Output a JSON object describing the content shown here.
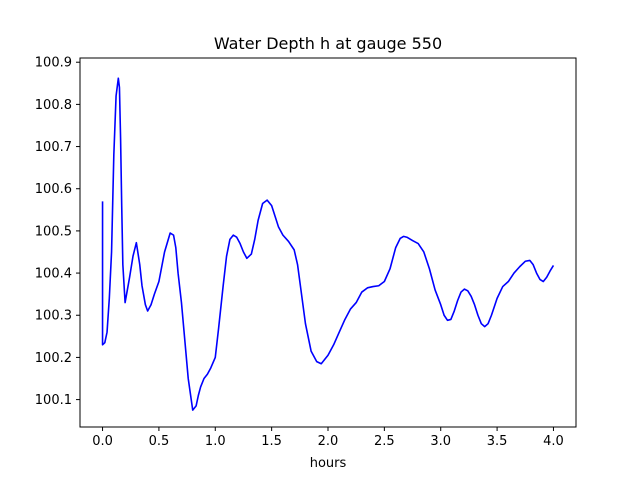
{
  "chart_data": {
    "type": "line",
    "title": "Water Depth h at gauge 550",
    "xlabel": "hours",
    "ylabel": "",
    "xlim": [
      -0.2,
      4.2
    ],
    "ylim": [
      100.035,
      100.91
    ],
    "x_ticks": [
      0.0,
      0.5,
      1.0,
      1.5,
      2.0,
      2.5,
      3.0,
      3.5,
      4.0
    ],
    "x_tick_labels": [
      "0.0",
      "0.5",
      "1.0",
      "1.5",
      "2.0",
      "2.5",
      "3.0",
      "3.5",
      "4.0"
    ],
    "y_ticks": [
      100.1,
      100.2,
      100.3,
      100.4,
      100.5,
      100.6,
      100.7,
      100.8,
      100.9
    ],
    "y_tick_labels": [
      "100.1",
      "100.2",
      "100.3",
      "100.4",
      "100.5",
      "100.6",
      "100.7",
      "100.8",
      "100.9"
    ],
    "grid": false,
    "series": [
      {
        "color": "#0000ff",
        "x": [
          0.0,
          0.0,
          0.02,
          0.04,
          0.06,
          0.08,
          0.1,
          0.12,
          0.14,
          0.15,
          0.16,
          0.17,
          0.18,
          0.2,
          0.22,
          0.24,
          0.27,
          0.3,
          0.33,
          0.35,
          0.38,
          0.4,
          0.43,
          0.46,
          0.5,
          0.55,
          0.6,
          0.63,
          0.65,
          0.67,
          0.7,
          0.73,
          0.76,
          0.8,
          0.83,
          0.85,
          0.87,
          0.9,
          0.93,
          0.96,
          1.0,
          1.03,
          1.07,
          1.1,
          1.13,
          1.16,
          1.19,
          1.22,
          1.25,
          1.28,
          1.32,
          1.35,
          1.38,
          1.42,
          1.46,
          1.5,
          1.53,
          1.56,
          1.6,
          1.65,
          1.7,
          1.73,
          1.76,
          1.8,
          1.85,
          1.9,
          1.94,
          1.97,
          2.0,
          2.05,
          2.1,
          2.15,
          2.2,
          2.25,
          2.3,
          2.35,
          2.4,
          2.45,
          2.5,
          2.55,
          2.6,
          2.64,
          2.67,
          2.7,
          2.75,
          2.8,
          2.85,
          2.9,
          2.95,
          3.0,
          3.03,
          3.06,
          3.09,
          3.12,
          3.15,
          3.18,
          3.21,
          3.24,
          3.27,
          3.3,
          3.33,
          3.36,
          3.39,
          3.42,
          3.45,
          3.5,
          3.55,
          3.6,
          3.65,
          3.7,
          3.75,
          3.79,
          3.82,
          3.85,
          3.88,
          3.91,
          3.94,
          3.97,
          4.0
        ],
        "y": [
          100.57,
          100.23,
          100.235,
          100.26,
          100.34,
          100.45,
          100.68,
          100.82,
          100.862,
          100.84,
          100.72,
          100.56,
          100.42,
          100.33,
          100.36,
          100.39,
          100.44,
          100.472,
          100.42,
          100.37,
          100.325,
          100.31,
          100.325,
          100.35,
          100.38,
          100.45,
          100.495,
          100.49,
          100.46,
          100.4,
          100.33,
          100.24,
          100.15,
          100.075,
          100.085,
          100.11,
          100.13,
          100.15,
          100.16,
          100.175,
          100.2,
          100.27,
          100.37,
          100.44,
          100.48,
          100.49,
          100.485,
          100.47,
          100.45,
          100.435,
          100.445,
          100.48,
          100.525,
          100.565,
          100.573,
          100.56,
          100.535,
          100.51,
          100.49,
          100.475,
          100.455,
          100.42,
          100.36,
          100.28,
          100.215,
          100.19,
          100.185,
          100.195,
          100.205,
          100.23,
          100.26,
          100.29,
          100.315,
          100.33,
          100.355,
          100.365,
          100.368,
          100.37,
          100.38,
          100.41,
          100.46,
          100.482,
          100.487,
          100.485,
          100.477,
          100.47,
          100.45,
          100.41,
          100.36,
          100.325,
          100.3,
          100.288,
          100.29,
          100.31,
          100.335,
          100.355,
          100.362,
          100.358,
          100.345,
          100.325,
          100.3,
          100.28,
          100.273,
          100.28,
          100.3,
          100.34,
          100.368,
          100.38,
          100.4,
          100.415,
          100.428,
          100.43,
          100.42,
          100.4,
          100.385,
          100.38,
          100.39,
          100.405,
          100.418
        ]
      }
    ]
  }
}
